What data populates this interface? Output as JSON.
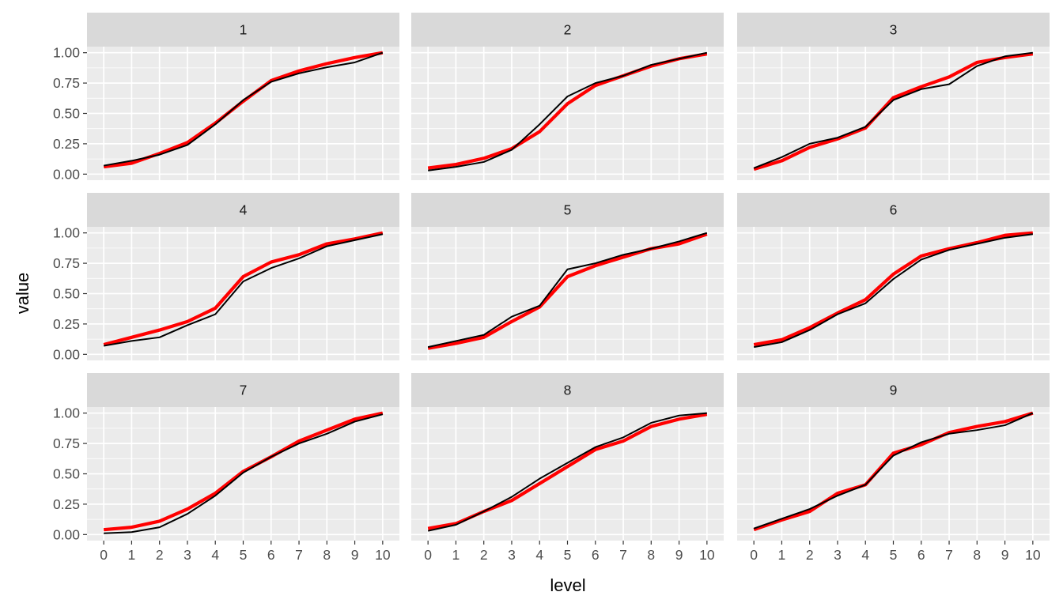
{
  "chart_data": {
    "type": "line",
    "facet_layout": "3x3 grid",
    "xlabel": "level",
    "ylabel": "value",
    "x": [
      0,
      1,
      2,
      3,
      4,
      5,
      6,
      7,
      8,
      9,
      10
    ],
    "x_tick_labels": [
      "0",
      "1",
      "2",
      "3",
      "4",
      "5",
      "6",
      "7",
      "8",
      "9",
      "10"
    ],
    "y_ticks": [
      0,
      0.25,
      0.5,
      0.75,
      1
    ],
    "y_tick_labels": [
      "0.00",
      "0.25",
      "0.50",
      "0.75",
      "1.00"
    ],
    "xlim": [
      -0.6,
      10.6
    ],
    "ylim": [
      -0.05,
      1.05
    ],
    "grid": true,
    "series_styles": [
      {
        "name": "red",
        "color": "#ff0000"
      },
      {
        "name": "black",
        "color": "#000000"
      }
    ],
    "panels": [
      {
        "label": "1",
        "red": [
          0.06,
          0.09,
          0.17,
          0.26,
          0.42,
          0.6,
          0.77,
          0.85,
          0.91,
          0.96,
          1.0
        ],
        "black": [
          0.07,
          0.11,
          0.16,
          0.24,
          0.41,
          0.61,
          0.76,
          0.83,
          0.88,
          0.92,
          1.0
        ]
      },
      {
        "label": "2",
        "red": [
          0.05,
          0.08,
          0.13,
          0.21,
          0.35,
          0.58,
          0.73,
          0.81,
          0.89,
          0.95,
          0.99
        ],
        "black": [
          0.03,
          0.06,
          0.1,
          0.2,
          0.41,
          0.64,
          0.75,
          0.81,
          0.9,
          0.95,
          1.0
        ]
      },
      {
        "label": "3",
        "red": [
          0.04,
          0.11,
          0.22,
          0.29,
          0.38,
          0.63,
          0.72,
          0.8,
          0.92,
          0.96,
          0.99
        ],
        "black": [
          0.05,
          0.14,
          0.25,
          0.3,
          0.39,
          0.61,
          0.7,
          0.74,
          0.89,
          0.97,
          1.0
        ]
      },
      {
        "label": "4",
        "red": [
          0.08,
          0.14,
          0.2,
          0.27,
          0.38,
          0.64,
          0.76,
          0.82,
          0.91,
          0.95,
          1.0
        ],
        "black": [
          0.07,
          0.11,
          0.14,
          0.24,
          0.33,
          0.6,
          0.71,
          0.79,
          0.89,
          0.94,
          0.99
        ]
      },
      {
        "label": "5",
        "red": [
          0.05,
          0.09,
          0.14,
          0.27,
          0.39,
          0.64,
          0.73,
          0.8,
          0.87,
          0.91,
          0.99
        ],
        "black": [
          0.06,
          0.11,
          0.16,
          0.31,
          0.4,
          0.7,
          0.75,
          0.82,
          0.87,
          0.93,
          1.0
        ]
      },
      {
        "label": "6",
        "red": [
          0.08,
          0.12,
          0.22,
          0.34,
          0.45,
          0.66,
          0.81,
          0.87,
          0.92,
          0.98,
          1.0
        ],
        "black": [
          0.06,
          0.1,
          0.2,
          0.33,
          0.42,
          0.62,
          0.78,
          0.86,
          0.91,
          0.96,
          0.99
        ]
      },
      {
        "label": "7",
        "red": [
          0.04,
          0.06,
          0.11,
          0.21,
          0.34,
          0.52,
          0.64,
          0.77,
          0.86,
          0.95,
          1.0
        ],
        "black": [
          0.01,
          0.02,
          0.06,
          0.17,
          0.32,
          0.51,
          0.64,
          0.75,
          0.83,
          0.93,
          0.99
        ]
      },
      {
        "label": "8",
        "red": [
          0.05,
          0.09,
          0.19,
          0.28,
          0.42,
          0.56,
          0.7,
          0.77,
          0.89,
          0.95,
          0.99
        ],
        "black": [
          0.03,
          0.08,
          0.19,
          0.31,
          0.46,
          0.59,
          0.72,
          0.8,
          0.92,
          0.98,
          1.0
        ]
      },
      {
        "label": "9",
        "red": [
          0.04,
          0.12,
          0.19,
          0.34,
          0.41,
          0.67,
          0.74,
          0.84,
          0.89,
          0.93,
          1.0
        ],
        "black": [
          0.05,
          0.13,
          0.21,
          0.32,
          0.41,
          0.65,
          0.76,
          0.83,
          0.86,
          0.9,
          1.0
        ]
      }
    ]
  }
}
